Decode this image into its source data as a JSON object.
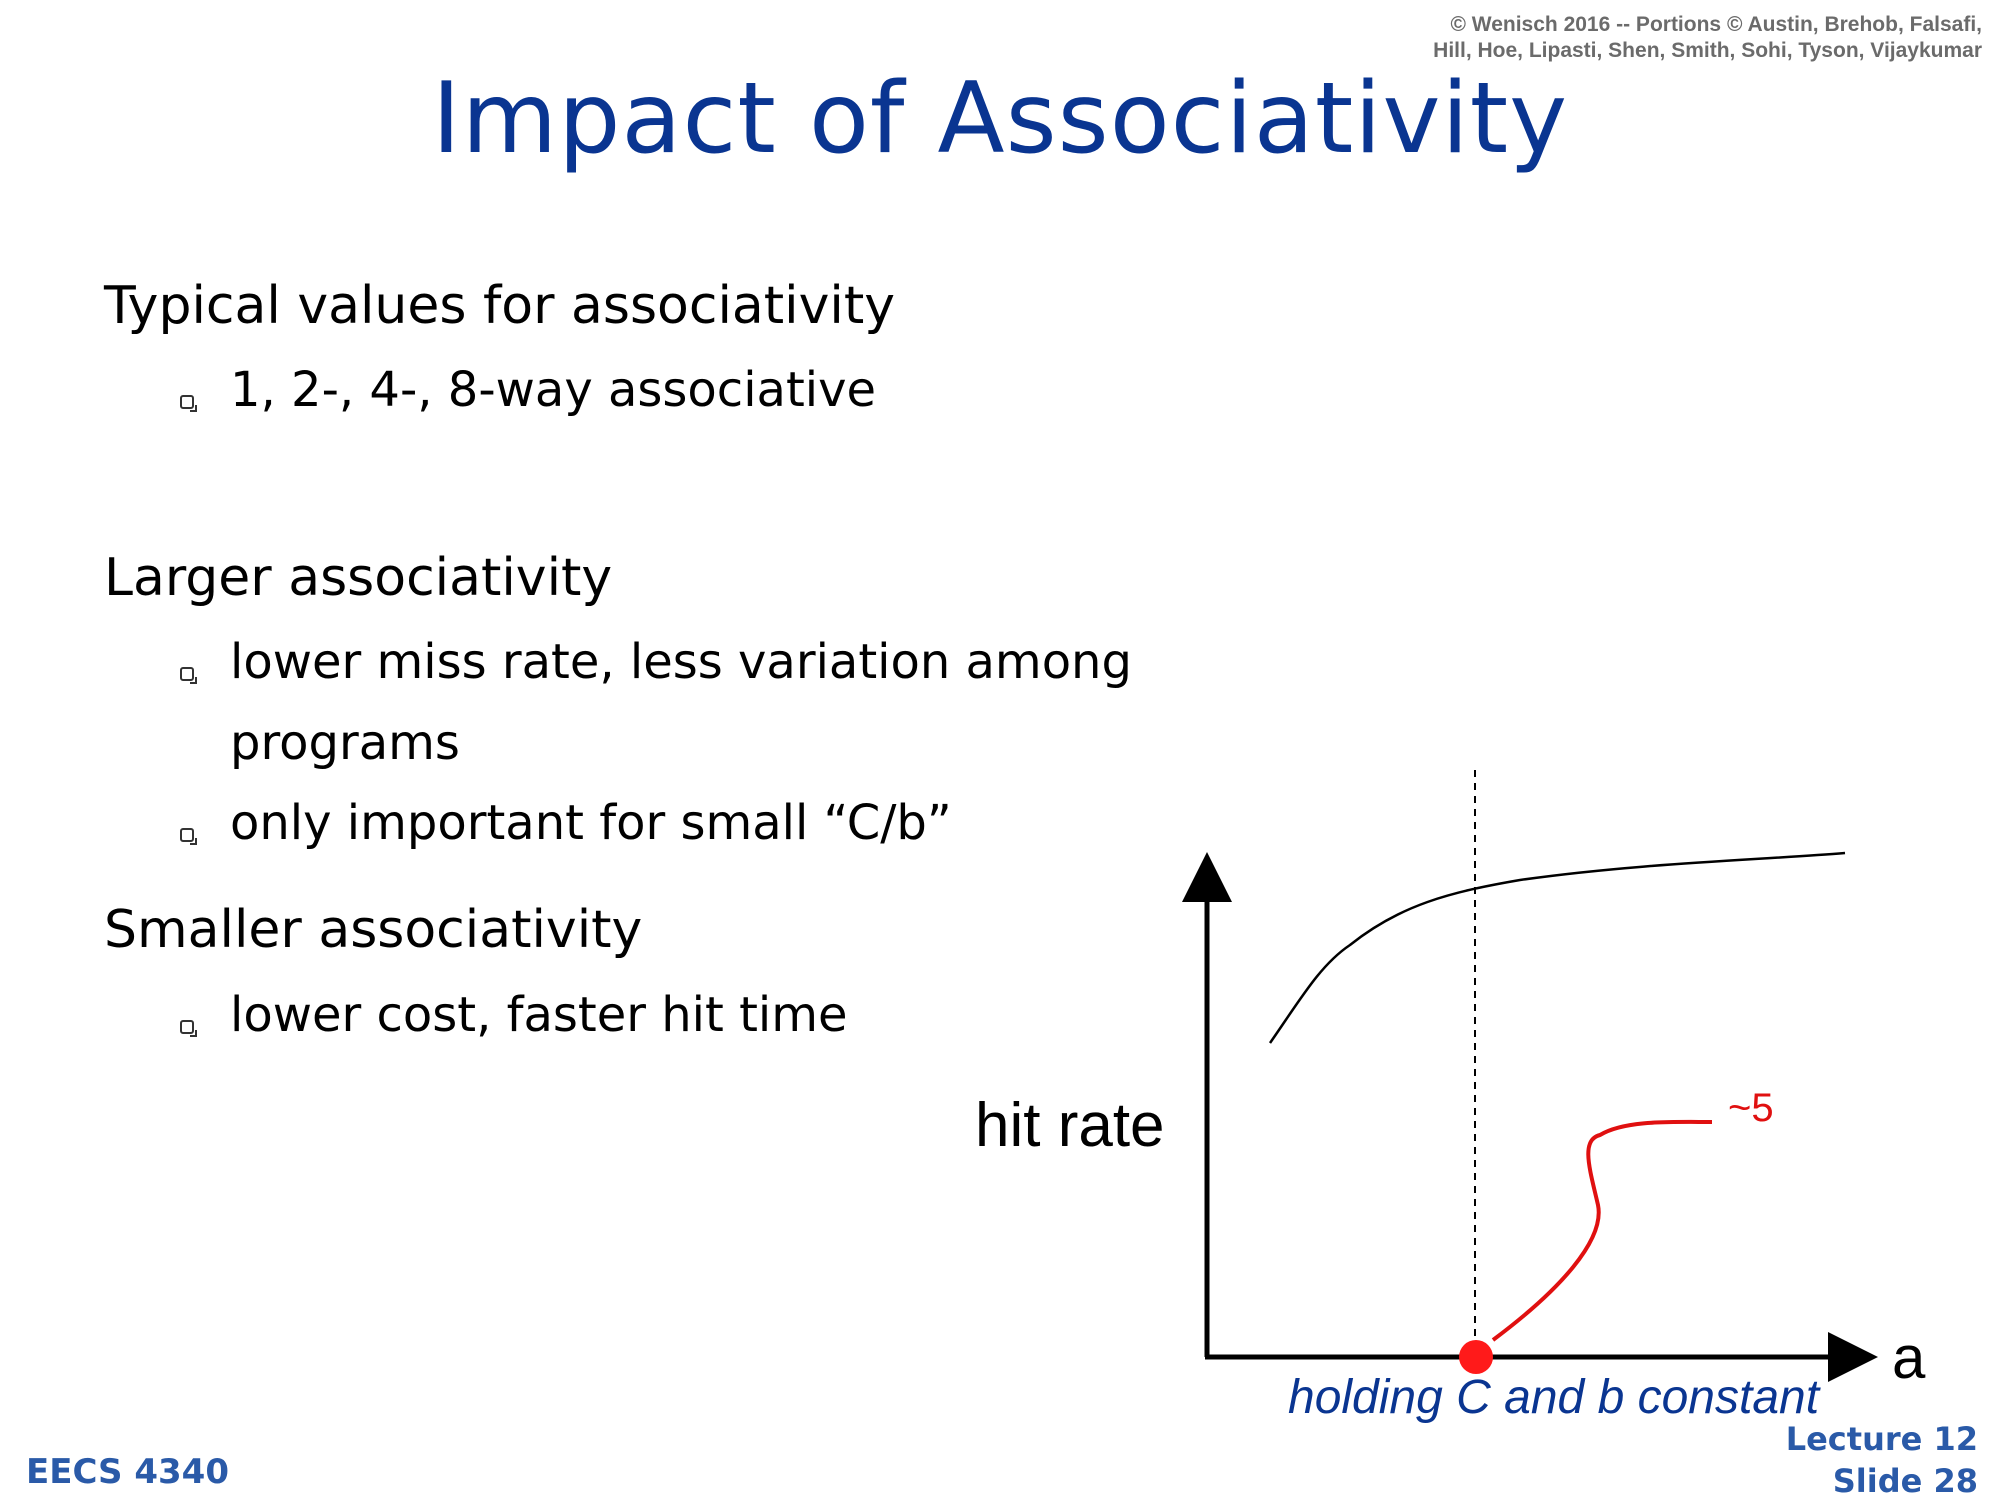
{
  "header": {
    "copyright_line1": "© Wenisch 2016 -- Portions © Austin, Brehob, Falsafi,",
    "copyright_line2": "Hill, Hoe, Lipasti, Shen, Smith, Sohi, Tyson, Vijaykumar",
    "title": "Impact of Associativity"
  },
  "body": {
    "sections": [
      {
        "heading": "Typical values for associativity",
        "bullets": [
          "1, 2-, 4-, 8-way associative"
        ]
      },
      {
        "heading": "Larger associativity",
        "bullets": [
          "lower miss rate, less variation among",
          "programs",
          "only important for small “C/b”"
        ]
      },
      {
        "heading": "Smaller associativity",
        "bullets": [
          "lower cost, faster hit time"
        ]
      }
    ]
  },
  "figure": {
    "y_axis_label": "hit rate",
    "x_axis_label": "a",
    "annotation": "~5",
    "caption": "holding C and b constant",
    "colors": {
      "curve": "#000000",
      "annotation": "#e01010",
      "caption": "#0a3591"
    }
  },
  "footer": {
    "course": "EECS 4340",
    "lecture": "Lecture 12",
    "slide": "Slide 28"
  }
}
